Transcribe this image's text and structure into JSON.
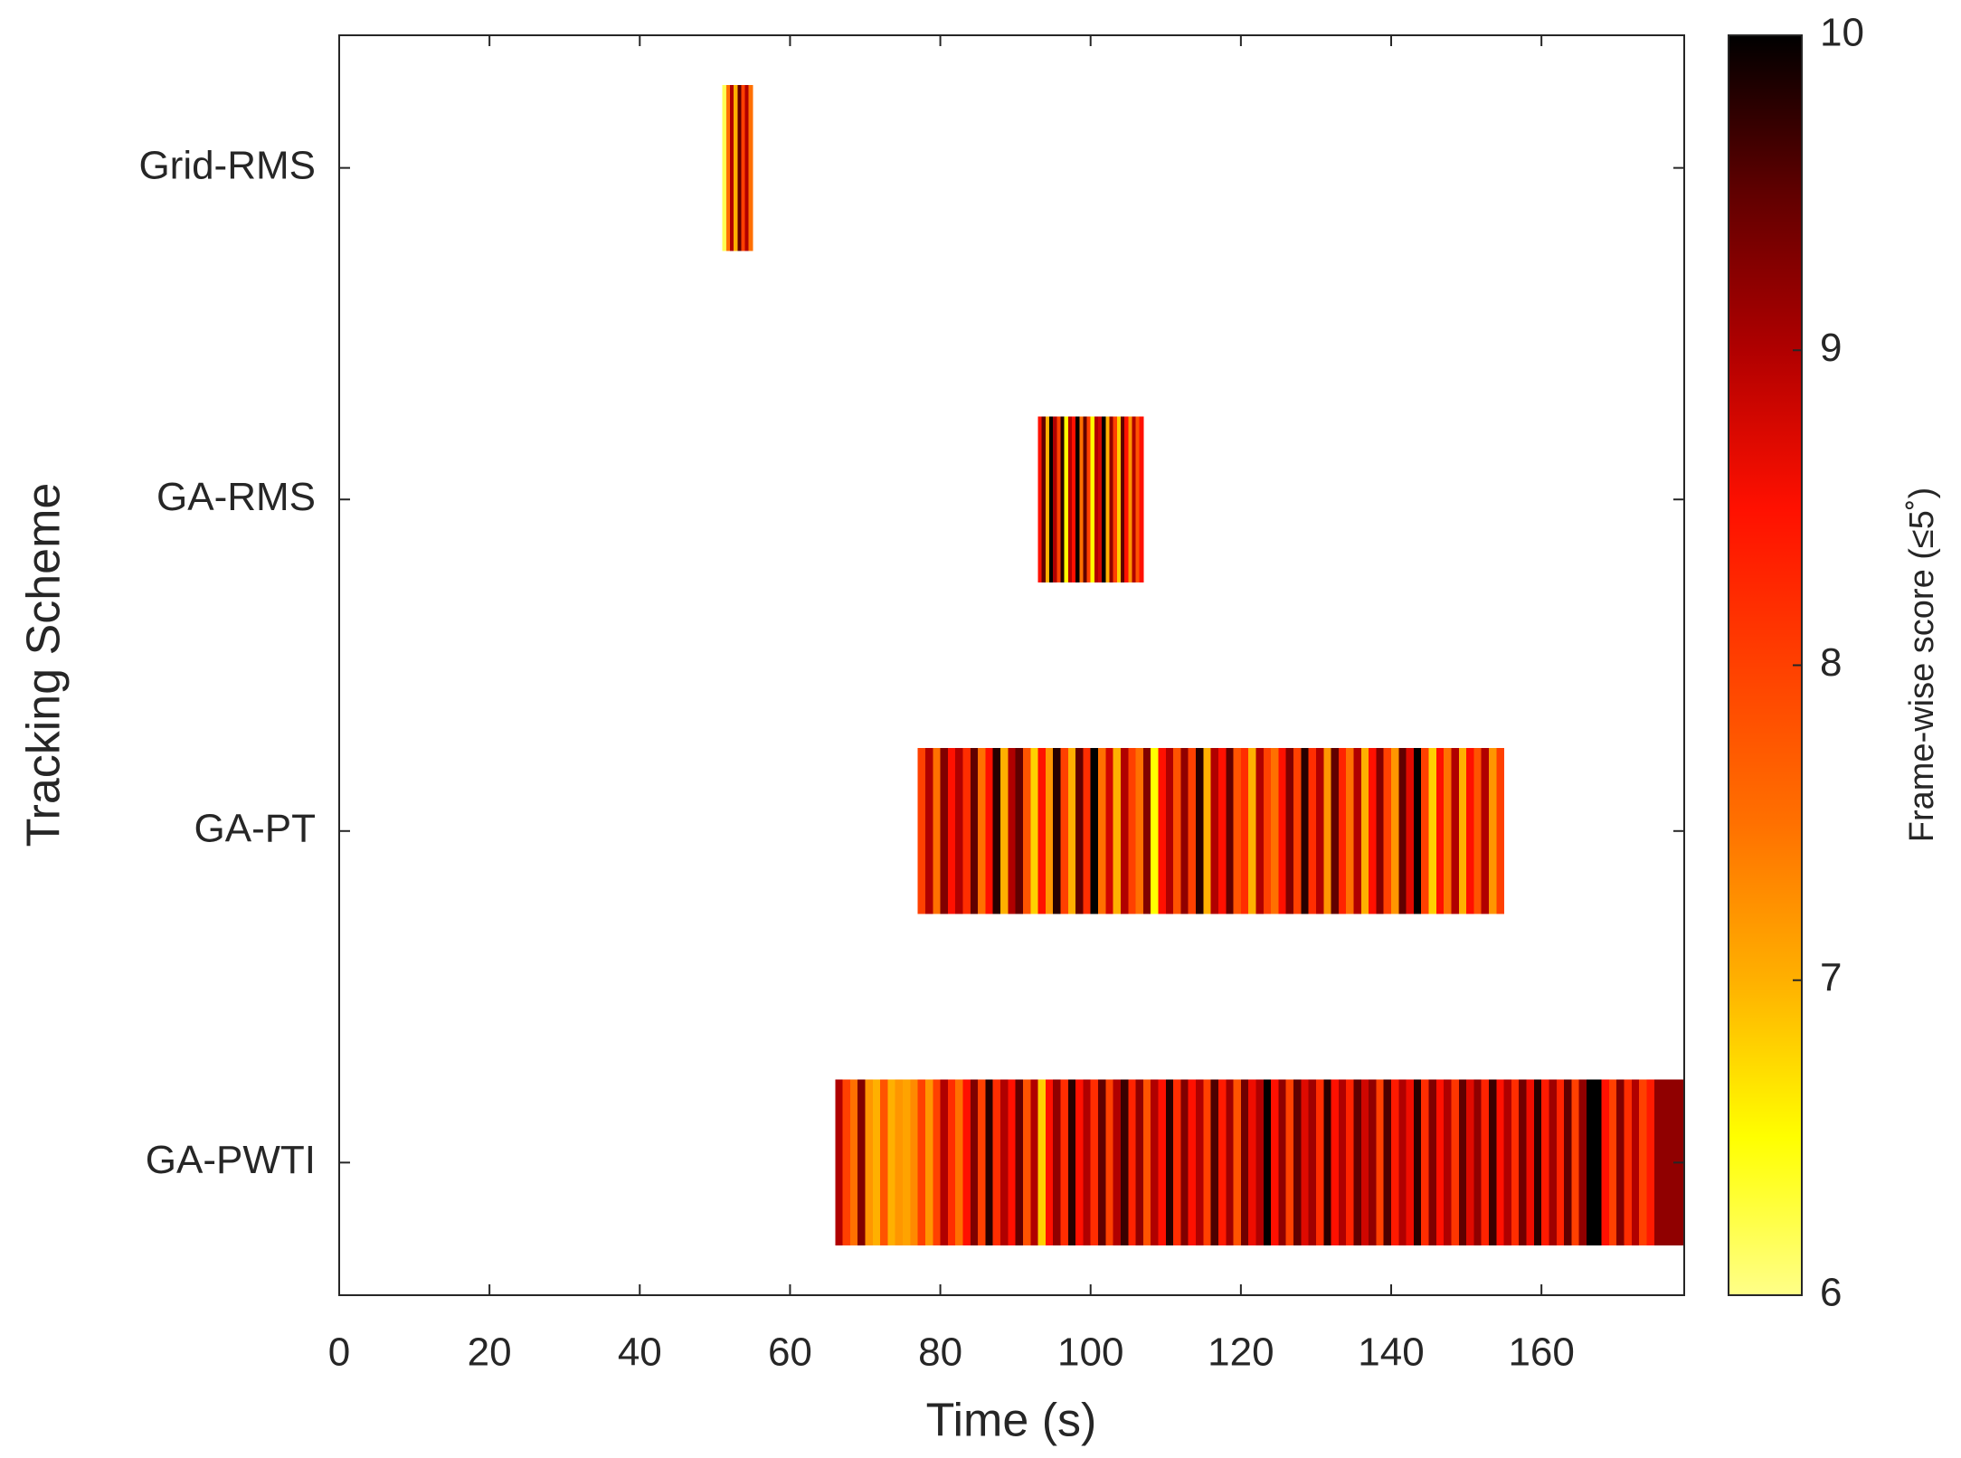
{
  "chart_data": {
    "type": "heatmap",
    "xlabel": "Time (s)",
    "ylabel": "Tracking Scheme",
    "xlim": [
      0,
      179
    ],
    "xticks": [
      0,
      20,
      40,
      60,
      80,
      100,
      120,
      140,
      160
    ],
    "series": [
      {
        "name": "Grid-RMS",
        "bins": [
          51,
          51.5,
          52,
          52.5,
          53,
          53.5,
          54,
          54.5,
          55
        ],
        "values": [
          6.2,
          7.5,
          9,
          7,
          9.5,
          8,
          9,
          7.5
        ]
      },
      {
        "name": "GA-RMS",
        "bins": [
          93,
          93.5,
          94,
          94.5,
          95,
          95.5,
          96,
          96.5,
          97,
          97.5,
          98,
          98.5,
          99,
          99.5,
          100,
          100.5,
          101,
          101.5,
          102,
          102.5,
          103,
          103.5,
          104,
          104.5,
          105,
          105.5,
          106,
          106.5,
          107
        ],
        "values": [
          8.5,
          9.5,
          7,
          10,
          9,
          8,
          9.8,
          6.5,
          9,
          8.5,
          10,
          7.5,
          9.5,
          8,
          6.5,
          9,
          8.8,
          10,
          7,
          9.2,
          8,
          6.8,
          9.5,
          8.5,
          7.2,
          9,
          7.8,
          8.5
        ]
      },
      {
        "name": "GA-PT",
        "bins": [
          77,
          78,
          79,
          80,
          81,
          82,
          83,
          84,
          85,
          86,
          87,
          88,
          89,
          90,
          91,
          92,
          93,
          94,
          95,
          96,
          97,
          98,
          99,
          100,
          101,
          102,
          103,
          104,
          105,
          106,
          107,
          108,
          109,
          110,
          111,
          112,
          113,
          114,
          115,
          116,
          117,
          118,
          119,
          120,
          121,
          122,
          123,
          124,
          125,
          126,
          127,
          128,
          129,
          130,
          131,
          132,
          133,
          134,
          135,
          136,
          137,
          138,
          139,
          140,
          141,
          142,
          143,
          144,
          145,
          146,
          147,
          148,
          149,
          150,
          151,
          152,
          153,
          154,
          155
        ],
        "values": [
          8,
          9,
          7.5,
          9.3,
          8.5,
          9,
          8.2,
          9.5,
          7.5,
          8.5,
          9.8,
          7,
          9,
          9.5,
          7.8,
          6.8,
          8.5,
          7.2,
          9.8,
          8,
          7,
          9.5,
          8.2,
          10,
          7.5,
          8.8,
          7,
          9,
          8,
          7.5,
          9.3,
          6.5,
          8.5,
          9,
          7.8,
          9.2,
          8,
          9.8,
          7,
          9,
          8.5,
          9.5,
          7.8,
          8.2,
          7,
          9,
          8,
          7.5,
          8.5,
          9.3,
          8,
          9.8,
          8.2,
          9,
          7.2,
          9.5,
          8.3,
          7.5,
          9,
          7,
          8.5,
          9.3,
          8,
          7.2,
          9.5,
          8.7,
          10,
          8,
          6.8,
          8.5,
          7.5,
          9,
          7,
          8.5,
          7.8,
          9,
          7.2,
          8
        ]
      },
      {
        "name": "GA-PWTI",
        "bins": [
          66,
          67,
          68,
          69,
          70,
          71,
          72,
          73,
          74,
          75,
          76,
          77,
          78,
          79,
          80,
          81,
          82,
          83,
          84,
          85,
          86,
          87,
          88,
          89,
          90,
          91,
          92,
          93,
          94,
          95,
          96,
          97,
          98,
          99,
          100,
          101,
          102,
          103,
          104,
          105,
          106,
          107,
          108,
          109,
          110,
          111,
          112,
          113,
          114,
          115,
          116,
          117,
          118,
          119,
          120,
          121,
          122,
          123,
          124,
          125,
          126,
          127,
          128,
          129,
          130,
          131,
          132,
          133,
          134,
          135,
          136,
          137,
          138,
          139,
          140,
          141,
          142,
          143,
          144,
          145,
          146,
          147,
          148,
          149,
          150,
          151,
          152,
          153,
          154,
          155,
          156,
          157,
          158,
          159,
          160,
          161,
          162,
          163,
          164,
          165,
          166,
          167,
          168,
          169,
          170,
          171,
          172,
          173,
          174,
          175,
          176,
          177,
          178,
          179
        ],
        "values": [
          9,
          8,
          7.5,
          9.3,
          7.2,
          7,
          7.8,
          7,
          7.2,
          7.1,
          7.3,
          8,
          7.2,
          8,
          9,
          8.2,
          7.5,
          8.5,
          9.3,
          8,
          9.8,
          8.2,
          9,
          8.5,
          9.5,
          7.8,
          9,
          6.8,
          8.5,
          9.2,
          8.2,
          9.8,
          8.5,
          9,
          8.2,
          9.5,
          8,
          9,
          9.7,
          8.3,
          9.2,
          7.8,
          9,
          8.5,
          9.8,
          8.2,
          9.3,
          8.5,
          9,
          8,
          9.6,
          8.4,
          9.1,
          7.8,
          9.4,
          8.6,
          9,
          10,
          8.5,
          9.2,
          8,
          9.5,
          8.7,
          9.1,
          8.2,
          9.8,
          8.5,
          9,
          8.3,
          9.5,
          8.8,
          9.2,
          8,
          9.6,
          8.4,
          9,
          8.6,
          9.8,
          8.2,
          9.3,
          8.5,
          9,
          8.1,
          9.5,
          8.7,
          9.2,
          8.3,
          9.7,
          8.5,
          9,
          8.2,
          9.4,
          8.6,
          9.8,
          8.4,
          9.1,
          8.3,
          9.5,
          8,
          9.2,
          10,
          10,
          8.5,
          8,
          9.3,
          8.2,
          9,
          8,
          8.4,
          9.2,
          9.2,
          9.2,
          9.2
        ]
      }
    ],
    "colorbar": {
      "label": "Frame-wise score (≤5˚)",
      "lim": [
        6,
        10
      ],
      "ticks": [
        6,
        7,
        8,
        9,
        10
      ],
      "colormap": [
        "#ffff88",
        "#ffff00",
        "#ffb000",
        "#ff7000",
        "#ff4000",
        "#ff1000",
        "#b00000",
        "#600000",
        "#000000"
      ]
    }
  }
}
